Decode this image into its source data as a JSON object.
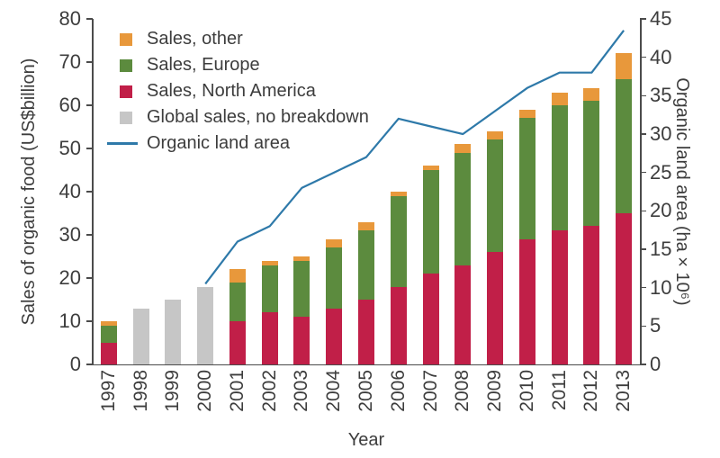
{
  "figure_title": "",
  "chart_data": {
    "type": "bar+line (stacked bars, dual y-axes, line on right axis)",
    "categories": [
      "1997",
      "1998",
      "1999",
      "2000",
      "2001",
      "2002",
      "2003",
      "2004",
      "2005",
      "2006",
      "2007",
      "2008",
      "2009",
      "2010",
      "2011",
      "2012",
      "2013"
    ],
    "series": [
      {
        "name": "Sales, North America",
        "type": "bar",
        "axis": "left",
        "color": "#C11F48",
        "values": [
          5,
          0,
          0,
          0,
          10,
          12,
          11,
          13,
          15,
          18,
          21,
          23,
          26,
          29,
          31,
          32,
          35
        ]
      },
      {
        "name": "Sales, Europe",
        "type": "bar",
        "axis": "left",
        "color": "#5C8B3E",
        "values": [
          4,
          0,
          0,
          0,
          9,
          11,
          13,
          14,
          16,
          21,
          24,
          26,
          26,
          28,
          29,
          29,
          31
        ]
      },
      {
        "name": "Sales, other",
        "type": "bar",
        "axis": "left",
        "color": "#E8983B",
        "values": [
          1,
          0,
          0,
          0,
          3,
          1,
          1,
          2,
          2,
          1,
          1,
          2,
          2,
          2,
          3,
          3,
          6
        ]
      },
      {
        "name": "Global sales, no breakdown",
        "type": "bar",
        "axis": "left",
        "color": "#C6C6C6",
        "values": [
          0,
          13,
          15,
          18,
          0,
          0,
          0,
          0,
          0,
          0,
          0,
          0,
          0,
          0,
          0,
          0,
          0
        ]
      },
      {
        "name": "Organic land area",
        "type": "line",
        "axis": "right",
        "color": "#2E79A9",
        "values": [
          null,
          null,
          null,
          10.5,
          16,
          18,
          23,
          25,
          27,
          32,
          31,
          30,
          33,
          36,
          38,
          38,
          43.5
        ]
      }
    ],
    "bar_totals": [
      10,
      13,
      15,
      18,
      22,
      24,
      25,
      29,
      33,
      40,
      46,
      51,
      54,
      59,
      63,
      64,
      72
    ],
    "legend": [
      {
        "label": "Sales, other",
        "swatch": "box",
        "color": "#E8983B"
      },
      {
        "label": "Sales, Europe",
        "swatch": "box",
        "color": "#5C8B3E"
      },
      {
        "label": "Sales, North America",
        "swatch": "box",
        "color": "#C11F48"
      },
      {
        "label": "Global sales, no breakdown",
        "swatch": "box",
        "color": "#C6C6C6"
      },
      {
        "label": "Organic land area",
        "swatch": "line",
        "color": "#2E79A9"
      }
    ],
    "legend_position": "upper-left inside plot",
    "grid": false,
    "left_axis": {
      "label": "Sales of organic food (US$billion)",
      "min": 0,
      "max": 80,
      "tick_step": 10
    },
    "right_axis": {
      "label": "Organic land area (ha × 10⁶)",
      "min": 0,
      "max": 45,
      "tick_step": 5
    },
    "x_axis": {
      "label": "Year"
    }
  },
  "colors": {
    "sales_other": "#E8983B",
    "sales_europe": "#5C8B3E",
    "sales_north_america": "#C11F48",
    "global_sales_no_breakdown": "#C6C6C6",
    "organic_land_area_line": "#2E79A9",
    "axis": "#4b4b4b",
    "text": "#3d3d3d",
    "background": "#ffffff"
  }
}
